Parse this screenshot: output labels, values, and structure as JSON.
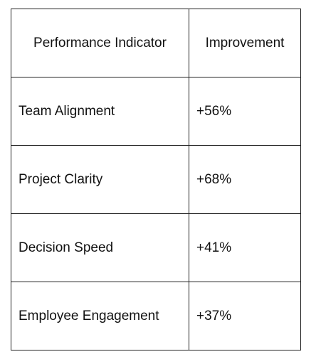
{
  "table": {
    "headers": [
      "Performance Indicator",
      "Improvement"
    ],
    "rows": [
      {
        "indicator": "Team Alignment",
        "improvement": "+56%"
      },
      {
        "indicator": "Project Clarity",
        "improvement": "+68%"
      },
      {
        "indicator": "Decision Speed",
        "improvement": "+41%"
      },
      {
        "indicator": "Employee Engagement",
        "improvement": "+37%"
      }
    ]
  }
}
